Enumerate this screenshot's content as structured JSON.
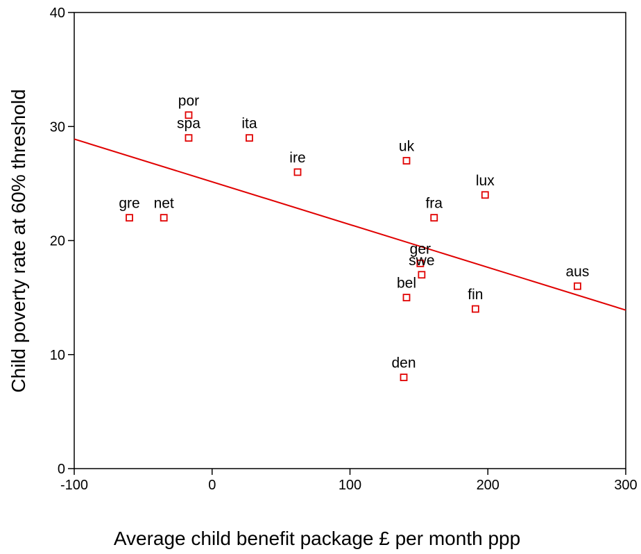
{
  "chart_data": {
    "type": "scatter",
    "xlabel": "Average child benefit package £ per month ppp",
    "ylabel": "Child poverty rate at 60% threshold",
    "xlim": [
      -100,
      300
    ],
    "ylim": [
      0,
      40
    ],
    "xticks": [
      -100,
      0,
      100,
      200,
      300
    ],
    "yticks": [
      0,
      10,
      20,
      30,
      40
    ],
    "grid": false,
    "marker_color": "#e00000",
    "line_color": "#e00000",
    "points": [
      {
        "label": "por",
        "x": -17,
        "y": 31
      },
      {
        "label": "spa",
        "x": -17,
        "y": 29
      },
      {
        "label": "ita",
        "x": 27,
        "y": 29
      },
      {
        "label": "ire",
        "x": 62,
        "y": 26
      },
      {
        "label": "gre",
        "x": -60,
        "y": 22
      },
      {
        "label": "net",
        "x": -35,
        "y": 22
      },
      {
        "label": "uk",
        "x": 141,
        "y": 27
      },
      {
        "label": "lux",
        "x": 198,
        "y": 24
      },
      {
        "label": "fra",
        "x": 161,
        "y": 22
      },
      {
        "label": "ger",
        "x": 151,
        "y": 18
      },
      {
        "label": "swe",
        "x": 152,
        "y": 17
      },
      {
        "label": "bel",
        "x": 141,
        "y": 15
      },
      {
        "label": "fin",
        "x": 191,
        "y": 14
      },
      {
        "label": "aus",
        "x": 265,
        "y": 16
      },
      {
        "label": "den",
        "x": 139,
        "y": 8
      }
    ],
    "trendline": {
      "x": [
        -100,
        300
      ],
      "y": [
        28.9,
        13.9
      ]
    }
  }
}
